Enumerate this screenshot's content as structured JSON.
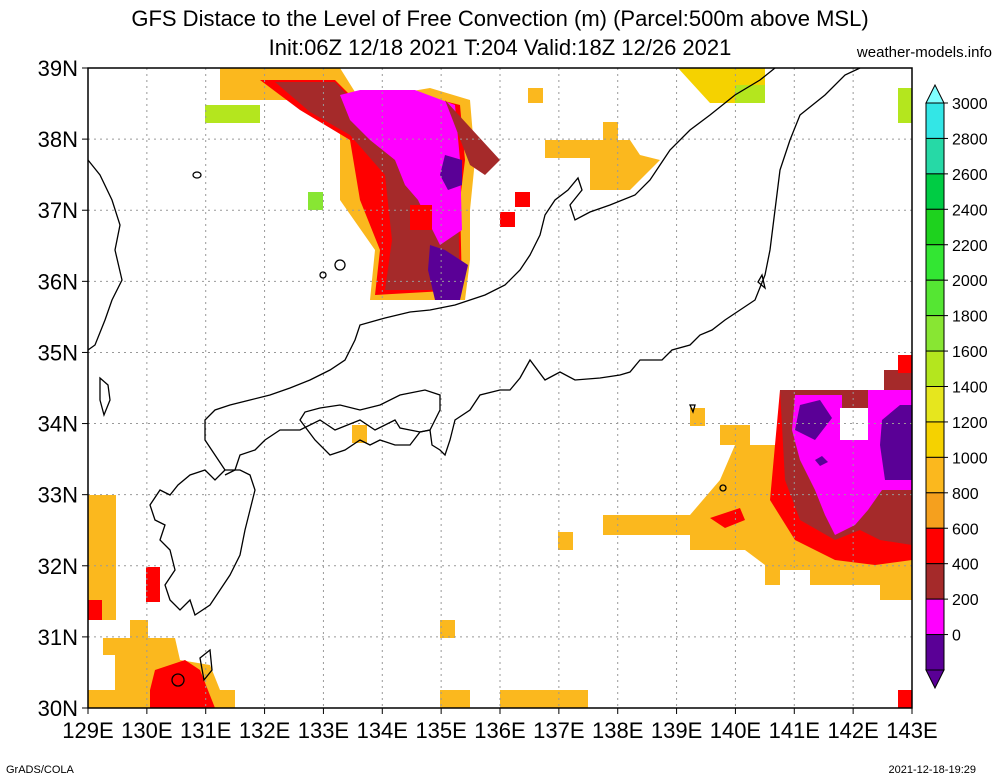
{
  "title_line1": "GFS Distace to the Level of Free Convection (m) (Parcel:500m above MSL)",
  "title_line2": "Init:06Z 12/18 2021 T:204 Valid:18Z 12/26 2021",
  "site": "weather-models.info",
  "footer_left": "GrADS/COLA",
  "footer_right": "2021-12-18-19:29",
  "lat_labels": [
    "39N",
    "38N",
    "37N",
    "36N",
    "35N",
    "34N",
    "33N",
    "32N",
    "31N",
    "30N"
  ],
  "lon_labels": [
    "129E",
    "130E",
    "131E",
    "132E",
    "133E",
    "134E",
    "135E",
    "136E",
    "137E",
    "138E",
    "139E",
    "140E",
    "141E",
    "142E",
    "143E"
  ],
  "colorbar": {
    "labels": [
      "3000",
      "2800",
      "2600",
      "2400",
      "2200",
      "2000",
      "1800",
      "1600",
      "1400",
      "1200",
      "1000",
      "800",
      "600",
      "400",
      "200",
      "0"
    ],
    "colors": [
      "#33e6e6",
      "#26d9a6",
      "#00cc44",
      "#1ed21e",
      "#33e633",
      "#55e633",
      "#88e633",
      "#b4e61e",
      "#e6e61e",
      "#f5d200",
      "#fbb81e",
      "#f5a01e",
      "#ff0000",
      "#a52a2a",
      "#ff00ff",
      "#5a0096"
    ],
    "top_arrow_color": "#80ffff",
    "bottom_arrow_color": "#5a0096"
  }
}
